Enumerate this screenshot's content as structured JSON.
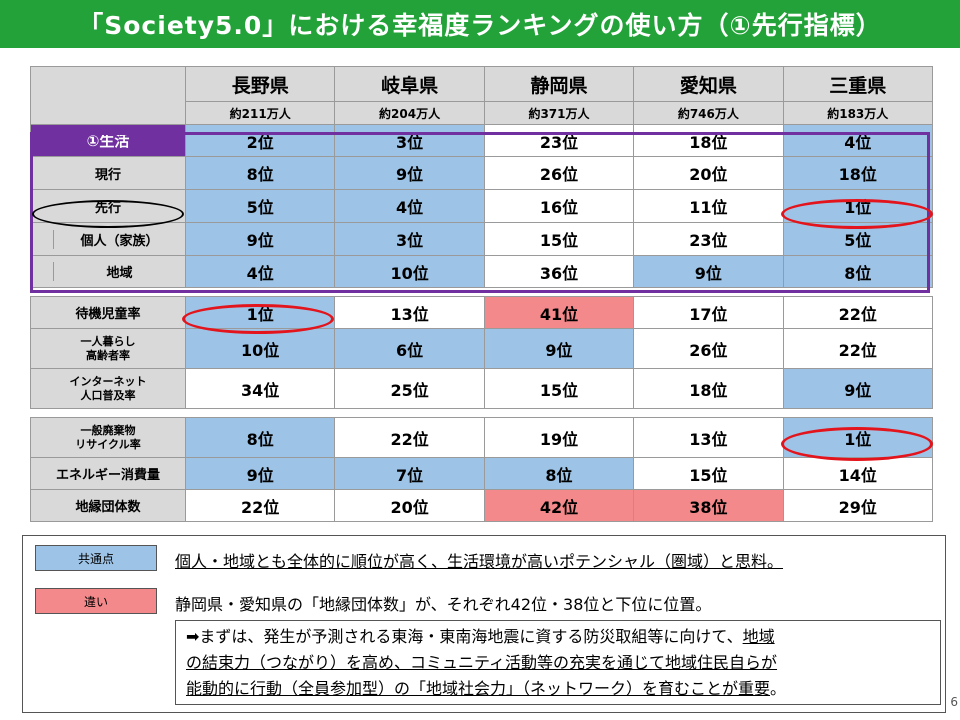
{
  "title": "「Society5.0」における幸福度ランキングの使い方（①先行指標）",
  "header": {
    "prefectures": [
      "長野県",
      "岐阜県",
      "静岡県",
      "愛知県",
      "三重県"
    ],
    "populations": [
      "約211万人",
      "約204万人",
      "約371万人",
      "約746万人",
      "約183万人"
    ]
  },
  "section1": {
    "rows": [
      {
        "label": "①生活",
        "values": [
          "2位",
          "3位",
          "23位",
          "18位",
          "4位"
        ],
        "colors": [
          "blue",
          "blue",
          "white",
          "white",
          "blue"
        ]
      },
      {
        "label": "現行",
        "values": [
          "8位",
          "9位",
          "26位",
          "20位",
          "18位"
        ],
        "colors": [
          "blue",
          "blue",
          "white",
          "white",
          "blue"
        ]
      },
      {
        "label": "先行",
        "values": [
          "5位",
          "4位",
          "16位",
          "11位",
          "1位"
        ],
        "colors": [
          "blue",
          "blue",
          "white",
          "white",
          "blue"
        ]
      },
      {
        "label": "個人（家族）",
        "values": [
          "9位",
          "3位",
          "15位",
          "23位",
          "5位"
        ],
        "colors": [
          "blue",
          "blue",
          "white",
          "white",
          "blue"
        ]
      },
      {
        "label": "地域",
        "values": [
          "4位",
          "10位",
          "36位",
          "9位",
          "8位"
        ],
        "colors": [
          "blue",
          "blue",
          "white",
          "blue",
          "blue"
        ]
      }
    ]
  },
  "section2": {
    "rows": [
      {
        "label": "待機児童率",
        "values": [
          "1位",
          "13位",
          "41位",
          "17位",
          "22位"
        ],
        "colors": [
          "blue",
          "white",
          "red",
          "white",
          "white"
        ]
      },
      {
        "label_line1": "一人暮らし",
        "label_line2": "高齢者率",
        "values": [
          "10位",
          "6位",
          "9位",
          "26位",
          "22位"
        ],
        "colors": [
          "blue",
          "blue",
          "blue",
          "white",
          "white"
        ]
      },
      {
        "label_line1": "インターネット",
        "label_line2": "人口普及率",
        "values": [
          "34位",
          "25位",
          "15位",
          "18位",
          "9位"
        ],
        "colors": [
          "white",
          "white",
          "white",
          "white",
          "blue"
        ]
      }
    ]
  },
  "section3": {
    "rows": [
      {
        "label_line1": "一般廃棄物",
        "label_line2": "リサイクル率",
        "values": [
          "8位",
          "22位",
          "19位",
          "13位",
          "1位"
        ],
        "colors": [
          "blue",
          "white",
          "white",
          "white",
          "blue"
        ]
      },
      {
        "label": "エネルギー消費量",
        "values": [
          "9位",
          "7位",
          "8位",
          "15位",
          "14位"
        ],
        "colors": [
          "blue",
          "blue",
          "blue",
          "white",
          "white"
        ]
      },
      {
        "label": "地縁団体数",
        "values": [
          "22位",
          "20位",
          "42位",
          "38位",
          "29位"
        ],
        "colors": [
          "white",
          "white",
          "red",
          "red",
          "white"
        ]
      }
    ]
  },
  "legend": {
    "common_tag": "共通点",
    "common_text": "個人・地域とも全体的に順位が高く、生活環境が高いポテンシャル（圏域）と思料。",
    "diff_tag": "違い",
    "diff_text": "静岡県・愛知県の「地縁団体数」が、それぞれ42位・38位と下位に位置。"
  },
  "conclusion": {
    "arrow": "➡",
    "line1_plain": "まずは、発生が予測される東海・東南海地震に資する防災取組等に向けて、",
    "line1_ul": "地域",
    "line2_ul": "の結束力（つながり）を高め、コミュニティ活動等の充実を通じて地域住民自らが",
    "line3_ul": "能動的に行動（全員参加型）の「地域社会力」（ネットワーク）を育むことが重要",
    "line3_end": "。"
  },
  "page_number": "6",
  "colors": {
    "title_bg": "#22a238",
    "blue": "#9dc3e6",
    "red": "#f4898b",
    "gray": "#d9d9d9",
    "purple": "#7030a0",
    "highlight_oval": "#e3141b"
  }
}
